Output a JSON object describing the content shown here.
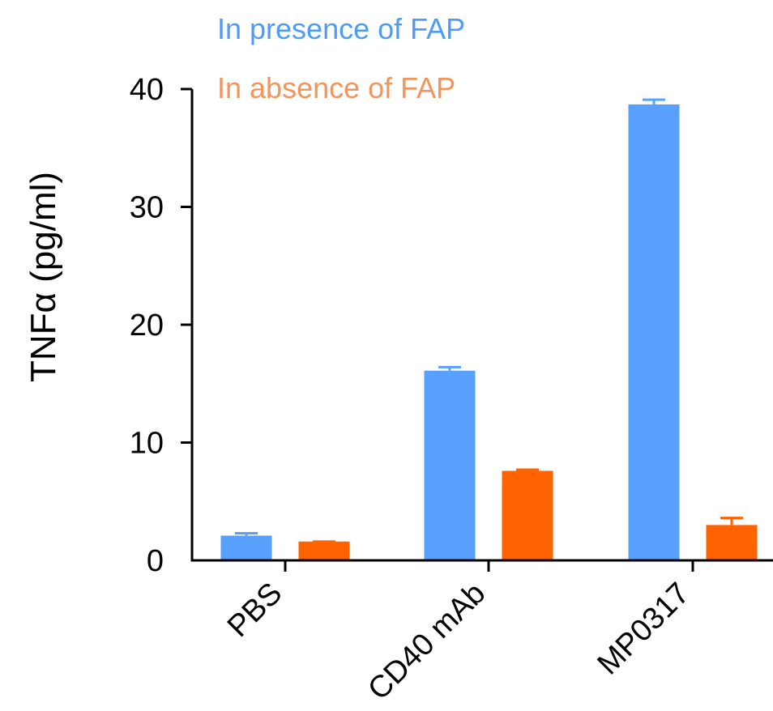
{
  "chart_data": {
    "type": "bar",
    "title": "",
    "xlabel": "",
    "ylabel": "TNFα (pg/ml)",
    "ylim": [
      0,
      40
    ],
    "yticks": [
      0,
      10,
      20,
      30,
      40
    ],
    "categories": [
      "PBS",
      "CD40 mAb",
      "MP0317"
    ],
    "series": [
      {
        "name": "In presence of  FAP",
        "color": "#58a0fb",
        "legend_color": "#4d9cf5",
        "values": [
          2.1,
          16.1,
          38.7
        ],
        "errors": [
          0.2,
          0.3,
          0.4
        ]
      },
      {
        "name": "In absence of  FAP",
        "color": "#ff6200",
        "legend_color": "#f2955c",
        "values": [
          1.6,
          7.6,
          3.0
        ],
        "errors": [
          0.0,
          0.1,
          0.6
        ]
      }
    ],
    "legend_position": "top",
    "grid": false
  }
}
